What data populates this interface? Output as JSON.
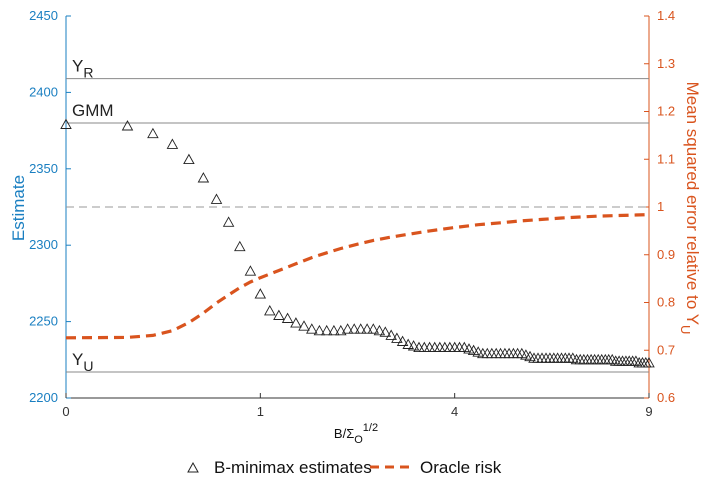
{
  "chart_data": {
    "type": "scatter",
    "xlabel": "B/Σ",
    "xlabel_sub": "O",
    "xlabel_sup": "1/2",
    "ylabel_left": "Estimate",
    "ylabel_right": "Mean squared error relative to Y",
    "ylabel_right_sub": "U",
    "x_scale": "sqrt",
    "xlim": [
      0,
      9
    ],
    "ylim_left": [
      2200,
      2450
    ],
    "ylim_right": [
      0.6,
      1.4
    ],
    "xticks": [
      0,
      1,
      4,
      9
    ],
    "xtick_labels": [
      "0",
      "1",
      "4",
      "9"
    ],
    "yticks_left": [
      2200,
      2250,
      2300,
      2350,
      2400,
      2450
    ],
    "yticks_left_labels": [
      "2200",
      "2250",
      "2300",
      "2350",
      "2400",
      "2450"
    ],
    "yticks_right": [
      0.6,
      0.7,
      0.8,
      0.9,
      1.0,
      1.1,
      1.2,
      1.3,
      1.4
    ],
    "yticks_right_labels": [
      "0.6",
      "0.7",
      "0.8",
      "0.9",
      "1",
      "1.1",
      "1.2",
      "1.3",
      "1.4"
    ],
    "reference_lines": [
      {
        "label": "Y",
        "label_sub": "R",
        "axis": "left",
        "y": 2409
      },
      {
        "label": "GMM",
        "label_sub": "",
        "axis": "left",
        "y": 2380
      },
      {
        "label": "Y",
        "label_sub": "U",
        "axis": "left",
        "y": 2217
      }
    ],
    "dashed_reference": {
      "axis": "right",
      "y": 1.0
    },
    "series": [
      {
        "name": "B-minimax estimates",
        "axis": "left",
        "marker": "triangle",
        "color": "#222222",
        "x": [
          0,
          0.1,
          0.2,
          0.3,
          0.4,
          0.5,
          0.6,
          0.7,
          0.8,
          0.9,
          1.0,
          1.1,
          1.2,
          1.3,
          1.4,
          1.5,
          1.6,
          1.7,
          1.8,
          1.9,
          2.0,
          2.1,
          2.2,
          2.3,
          2.4,
          2.5,
          2.6,
          2.7,
          2.8,
          2.9,
          3.0,
          3.1,
          3.2,
          3.3,
          3.4,
          3.5,
          3.6,
          3.7,
          3.8,
          3.9,
          4.0,
          4.1,
          4.2,
          4.3,
          4.4,
          4.5,
          4.6,
          4.7,
          4.8,
          4.9,
          5.0,
          5.1,
          5.2,
          5.3,
          5.4,
          5.5,
          5.6,
          5.7,
          5.8,
          5.9,
          6.0,
          6.1,
          6.2,
          6.3,
          6.4,
          6.5,
          6.6,
          6.7,
          6.8,
          6.9,
          7.0,
          7.1,
          7.2,
          7.3,
          7.4,
          7.5,
          7.6,
          7.7,
          7.8,
          7.9,
          8.0,
          8.1,
          8.2,
          8.3,
          8.4,
          8.5,
          8.6,
          8.7,
          8.8,
          8.9,
          9.0
        ],
        "values": [
          2379,
          2378,
          2373,
          2366,
          2356,
          2344,
          2330,
          2315,
          2299,
          2283,
          2268,
          2257,
          2254,
          2252,
          2249,
          2247,
          2245,
          2244,
          2244,
          2244,
          2244,
          2245,
          2245,
          2245,
          2245,
          2245,
          2244,
          2243,
          2241,
          2239,
          2237,
          2235,
          2234,
          2233,
          2233,
          2233,
          2233,
          2233,
          2233,
          2233,
          2233,
          2233,
          2233,
          2232,
          2231,
          2230,
          2229,
          2229,
          2229,
          2229,
          2229,
          2229,
          2229,
          2229,
          2229,
          2229,
          2228,
          2227,
          2226,
          2226,
          2226,
          2226,
          2226,
          2226,
          2226,
          2226,
          2226,
          2226,
          2226,
          2225,
          2225,
          2225,
          2225,
          2225,
          2225,
          2225,
          2225,
          2225,
          2225,
          2225,
          2224,
          2224,
          2224,
          2224,
          2224,
          2224,
          2224,
          2223,
          2223,
          2223,
          2223
        ]
      },
      {
        "name": "Oracle risk",
        "axis": "right",
        "marker": "dashed-line",
        "color": "#d9541e",
        "x": [
          0,
          0.1,
          0.2,
          0.3,
          0.4,
          0.5,
          0.6,
          0.7,
          0.8,
          0.9,
          1.0,
          1.2,
          1.4,
          1.6,
          1.8,
          2.0,
          2.25,
          2.5,
          2.75,
          3.0,
          3.5,
          4.0,
          4.5,
          5.0,
          5.5,
          6.0,
          6.5,
          7.0,
          7.5,
          8.0,
          8.5,
          9.0
        ],
        "values": [
          0.726,
          0.727,
          0.731,
          0.741,
          0.758,
          0.778,
          0.799,
          0.816,
          0.831,
          0.843,
          0.852,
          0.867,
          0.881,
          0.894,
          0.904,
          0.913,
          0.922,
          0.93,
          0.936,
          0.941,
          0.95,
          0.957,
          0.963,
          0.967,
          0.971,
          0.974,
          0.977,
          0.979,
          0.981,
          0.982,
          0.983,
          0.984
        ]
      }
    ],
    "legend": {
      "position": "bottom",
      "entries": [
        "B-minimax estimates",
        "Oracle risk"
      ]
    },
    "colors": {
      "left_axis": "#1a7fc1",
      "right_axis": "#d9541e",
      "ref_lines": "#8a8a8a",
      "markers": "#222222",
      "risk_line": "#d9541e"
    }
  }
}
